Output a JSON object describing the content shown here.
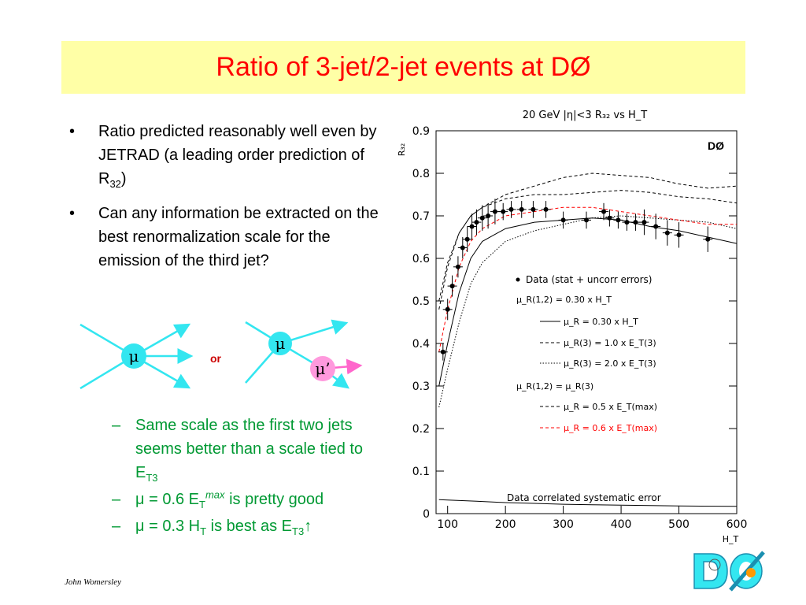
{
  "slide": {
    "title": "Ratio of 3-jet/2-jet events at DØ",
    "footer": "John Womersley"
  },
  "bullets": [
    {
      "marker": "•",
      "text_before": "Ratio predicted reasonably well even by JETRAD (a leading order prediction of R",
      "subscript": "32",
      "text_after": ")"
    },
    {
      "marker": "•",
      "text": "Can any information be extracted on the best renormalization scale for the emission of the third jet?"
    }
  ],
  "diagram": {
    "mu": "μ",
    "mu_prime": "μ’",
    "or": "or",
    "colors": {
      "lines": "#33e6f0",
      "circle_cyan": "#33e6f0",
      "circle_pink": "#ff99dd",
      "arrow_pink": "#ff66cc",
      "mu_text": "#000000",
      "or_text": "#cc0000"
    }
  },
  "sub_bullets": [
    {
      "marker": "–",
      "text_before": "Same scale as the first two jets seems better than a scale tied to E",
      "subscript": "T3",
      "text_after": ""
    },
    {
      "marker": "–",
      "text_before": "μ = 0.6 E",
      "subscript": "T",
      "superscript": "max",
      "text_after": " is pretty good"
    },
    {
      "marker": "–",
      "text_before": "μ = 0.3 H",
      "subscript": "T",
      "text_middle": " is best as E",
      "subscript2": "T3",
      "text_after": "↑"
    }
  ],
  "chart_data": {
    "type": "scatter",
    "title": "20 GeV |η|<3 R₃₂ vs H_T",
    "xlabel": "H_T",
    "ylabel": "R₃₂",
    "corner_label": "DØ",
    "xlim": [
      80,
      600
    ],
    "ylim": [
      0,
      0.9
    ],
    "x_ticks": [
      100,
      200,
      300,
      400,
      500,
      600
    ],
    "y_ticks": [
      0,
      0.1,
      0.2,
      0.3,
      0.4,
      0.5,
      0.6,
      0.7,
      0.8,
      0.9
    ],
    "data": {
      "name": "Data (stat + uncorr errors)",
      "x": [
        92,
        100,
        108,
        118,
        126,
        134,
        142,
        150,
        160,
        170,
        182,
        196,
        210,
        228,
        248,
        270,
        300,
        340,
        370,
        380,
        395,
        410,
        425,
        440,
        460,
        480,
        500,
        550
      ],
      "y": [
        0.38,
        0.48,
        0.535,
        0.58,
        0.625,
        0.645,
        0.675,
        0.685,
        0.695,
        0.7,
        0.71,
        0.71,
        0.715,
        0.715,
        0.715,
        0.715,
        0.69,
        0.69,
        0.71,
        0.695,
        0.69,
        0.685,
        0.685,
        0.685,
        0.675,
        0.66,
        0.655,
        0.645
      ],
      "err": [
        0.02,
        0.025,
        0.025,
        0.025,
        0.025,
        0.03,
        0.03,
        0.03,
        0.03,
        0.03,
        0.03,
        0.02,
        0.02,
        0.02,
        0.02,
        0.02,
        0.02,
        0.02,
        0.02,
        0.02,
        0.02,
        0.02,
        0.02,
        0.03,
        0.03,
        0.03,
        0.03,
        0.03
      ]
    },
    "curves": [
      {
        "label": "μ_R = 0.30 x H_T",
        "style": "solid",
        "color": "#000000",
        "x": [
          85,
          100,
          120,
          140,
          160,
          200,
          250,
          300,
          350,
          400,
          450,
          500,
          550,
          600
        ],
        "y": [
          0.3,
          0.4,
          0.52,
          0.6,
          0.64,
          0.67,
          0.685,
          0.69,
          0.695,
          0.69,
          0.675,
          0.665,
          0.65,
          0.635
        ]
      },
      {
        "label": "μ_R(3) = 1.0 x E_T(3)",
        "style": "dashed",
        "color": "#000000",
        "x": [
          85,
          100,
          120,
          140,
          160,
          200,
          250,
          300,
          350,
          400,
          450,
          500,
          550,
          600
        ],
        "y": [
          0.5,
          0.59,
          0.66,
          0.7,
          0.72,
          0.75,
          0.77,
          0.79,
          0.8,
          0.795,
          0.79,
          0.775,
          0.765,
          0.77
        ]
      },
      {
        "label": "μ_R(3) = 2.0 x E_T(3)",
        "style": "dotted",
        "color": "#000000",
        "x": [
          85,
          100,
          120,
          140,
          160,
          200,
          250,
          300,
          350,
          400,
          450,
          500,
          550,
          600
        ],
        "y": [
          0.25,
          0.34,
          0.45,
          0.54,
          0.59,
          0.64,
          0.665,
          0.68,
          0.695,
          0.7,
          0.695,
          0.69,
          0.685,
          0.67
        ]
      },
      {
        "label": "μ_R = 0.5 x E_T(max)",
        "style": "dashed",
        "color": "#000000",
        "x": [
          85,
          100,
          120,
          140,
          160,
          200,
          250,
          300,
          350,
          400,
          450,
          500,
          550,
          600
        ],
        "y": [
          0.48,
          0.58,
          0.66,
          0.7,
          0.72,
          0.74,
          0.75,
          0.75,
          0.755,
          0.76,
          0.755,
          0.745,
          0.74,
          0.73
        ]
      },
      {
        "label": "μ_R = 0.6 x E_T(max)",
        "style": "dashed",
        "color": "#ff0000",
        "x": [
          85,
          100,
          120,
          140,
          160,
          200,
          250,
          300,
          350,
          400,
          450,
          500,
          550,
          600
        ],
        "y": [
          0.38,
          0.48,
          0.58,
          0.64,
          0.67,
          0.7,
          0.71,
          0.72,
          0.72,
          0.71,
          0.7,
          0.69,
          0.68,
          0.68
        ]
      }
    ],
    "systematic_band": {
      "label": "Data correlated systematic error",
      "x": [
        85,
        100,
        150,
        200,
        250,
        300,
        350,
        400,
        450,
        500,
        600
      ],
      "y": [
        0.033,
        0.032,
        0.029,
        0.026,
        0.024,
        0.022,
        0.021,
        0.02,
        0.019,
        0.018,
        0.017
      ]
    },
    "legend": {
      "header1": "μ_R(1,2) = 0.30 x H_T",
      "header2": "μ_R(1,2) = μ_R(3)"
    }
  }
}
